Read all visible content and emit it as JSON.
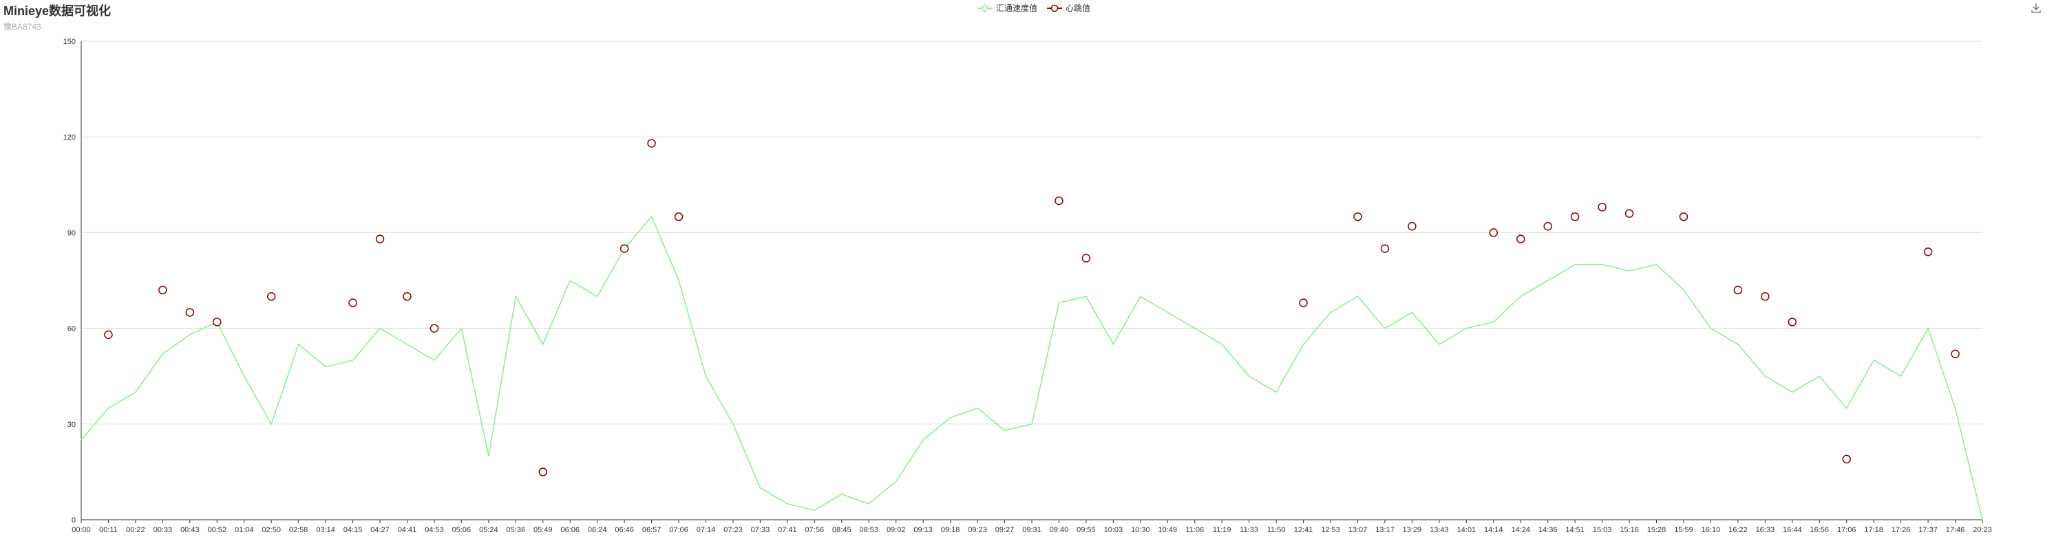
{
  "title": "Minieye数据可视化",
  "subtitle": "豫BA8743",
  "legend": [
    {
      "name": "汇通速度值",
      "color": "#90ee90",
      "symbol": "diamond"
    },
    {
      "name": "心跳值",
      "color": "#8b0000",
      "symbol": "circle"
    }
  ],
  "toolbox": {
    "icon": "download-icon"
  },
  "chart_data": {
    "type": "line",
    "title": "Minieye数据可视化",
    "subtitle": "豫BA8743",
    "xlabel": "",
    "ylabel": "",
    "ylim": [
      0,
      150
    ],
    "yticks": [
      0,
      30,
      60,
      90,
      120,
      150
    ],
    "grid": true,
    "legend_position": "top-center",
    "categories": [
      "00:00",
      "00:11",
      "00:22",
      "00:33",
      "00:43",
      "00:52",
      "01:04",
      "02:50",
      "02:58",
      "03:14",
      "04:15",
      "04:27",
      "04:41",
      "04:53",
      "05:06",
      "05:24",
      "05:36",
      "05:49",
      "06:06",
      "06:24",
      "06:46",
      "06:57",
      "07:06",
      "07:14",
      "07:23",
      "07:33",
      "07:41",
      "07:56",
      "08:45",
      "08:53",
      "09:02",
      "09:13",
      "09:18",
      "09:23",
      "09:27",
      "09:31",
      "09:40",
      "09:55",
      "10:03",
      "10:30",
      "10:49",
      "11:06",
      "11:19",
      "11:33",
      "11:50",
      "12:41",
      "12:53",
      "13:07",
      "13:17",
      "13:29",
      "13:43",
      "14:01",
      "14:14",
      "14:24",
      "14:36",
      "14:51",
      "15:03",
      "15:16",
      "15:28",
      "15:59",
      "16:10",
      "16:22",
      "16:33",
      "16:44",
      "16:56",
      "17:06",
      "17:18",
      "17:26",
      "17:37",
      "17:46",
      "20:23"
    ],
    "series": [
      {
        "name": "汇通速度值",
        "color": "#90ee90",
        "values": [
          25,
          35,
          40,
          52,
          58,
          62,
          45,
          30,
          55,
          48,
          50,
          60,
          55,
          50,
          60,
          20,
          70,
          55,
          75,
          70,
          85,
          95,
          75,
          45,
          30,
          10,
          5,
          3,
          8,
          5,
          12,
          25,
          32,
          35,
          28,
          30,
          68,
          70,
          55,
          70,
          65,
          60,
          55,
          45,
          40,
          55,
          65,
          70,
          60,
          65,
          55,
          60,
          62,
          70,
          75,
          80,
          80,
          78,
          80,
          72,
          60,
          55,
          45,
          40,
          45,
          35,
          50,
          45,
          60,
          35,
          0
        ]
      },
      {
        "name": "心跳值",
        "color": "#8b0000",
        "values": [
          null,
          58,
          null,
          72,
          65,
          62,
          null,
          70,
          null,
          null,
          68,
          88,
          70,
          60,
          null,
          null,
          null,
          15,
          null,
          null,
          85,
          118,
          95,
          null,
          null,
          null,
          null,
          null,
          null,
          null,
          null,
          null,
          null,
          null,
          null,
          null,
          100,
          82,
          null,
          null,
          null,
          null,
          null,
          null,
          null,
          68,
          null,
          95,
          85,
          92,
          null,
          null,
          90,
          88,
          92,
          95,
          98,
          96,
          null,
          95,
          null,
          72,
          70,
          62,
          null,
          19,
          null,
          null,
          84,
          52,
          null
        ]
      }
    ]
  }
}
